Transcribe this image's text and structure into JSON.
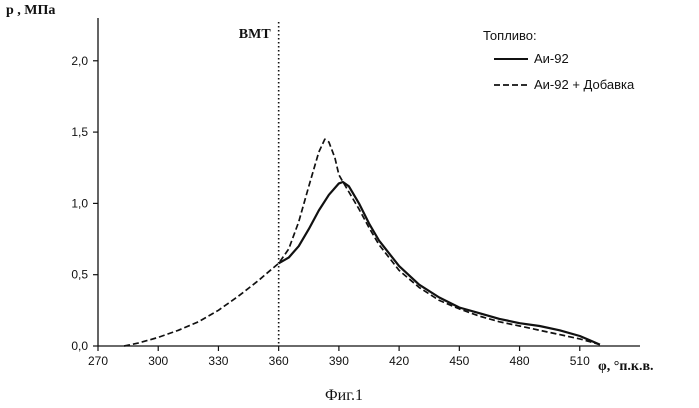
{
  "chart_data": {
    "type": "line",
    "ylabel": "p , МПа",
    "xlabel": "φ, °п.к.в.",
    "caption": "Фиг.1",
    "xlim": [
      270,
      540
    ],
    "ylim": [
      0,
      2.3
    ],
    "x_ticks": [
      270,
      300,
      330,
      360,
      390,
      420,
      450,
      480,
      510
    ],
    "x_tick_labels": [
      "270",
      "300",
      "330",
      "360",
      "390",
      "420",
      "450",
      "480",
      "510"
    ],
    "y_ticks": [
      0,
      0.5,
      1.0,
      1.5,
      2.0
    ],
    "y_tick_labels": [
      "0,0",
      "0,5",
      "1,0",
      "1,5",
      "2,0"
    ],
    "grid": false,
    "annotations": [
      {
        "label": "ВМТ",
        "x": 360,
        "style": "dotted-vertical"
      }
    ],
    "legend": {
      "title": "Топливо:",
      "position": "top-right"
    },
    "series": [
      {
        "name": "Аи-92",
        "style": "solid",
        "x": [
          360,
          365,
          370,
          375,
          380,
          385,
          390,
          392,
          395,
          400,
          405,
          410,
          420,
          430,
          440,
          450,
          460,
          470,
          480,
          490,
          500,
          510,
          515,
          520
        ],
        "y": [
          0.58,
          0.62,
          0.7,
          0.82,
          0.95,
          1.06,
          1.14,
          1.15,
          1.12,
          1.0,
          0.86,
          0.74,
          0.56,
          0.43,
          0.34,
          0.27,
          0.23,
          0.19,
          0.16,
          0.14,
          0.11,
          0.07,
          0.04,
          0.01
        ]
      },
      {
        "name": "Аи-92 + Добавка",
        "style": "dashed",
        "x": [
          283,
          290,
          300,
          310,
          320,
          330,
          340,
          350,
          355,
          360,
          365,
          370,
          375,
          380,
          383,
          385,
          388,
          390,
          395,
          400,
          405,
          410,
          420,
          430,
          440,
          450,
          460,
          470,
          480,
          490,
          500,
          510,
          515,
          520
        ],
        "y": [
          0.0,
          0.02,
          0.06,
          0.11,
          0.17,
          0.25,
          0.35,
          0.46,
          0.52,
          0.58,
          0.68,
          0.87,
          1.12,
          1.36,
          1.45,
          1.43,
          1.32,
          1.2,
          1.08,
          0.96,
          0.83,
          0.71,
          0.53,
          0.41,
          0.32,
          0.26,
          0.21,
          0.17,
          0.14,
          0.11,
          0.08,
          0.05,
          0.03,
          0.01
        ]
      }
    ]
  }
}
